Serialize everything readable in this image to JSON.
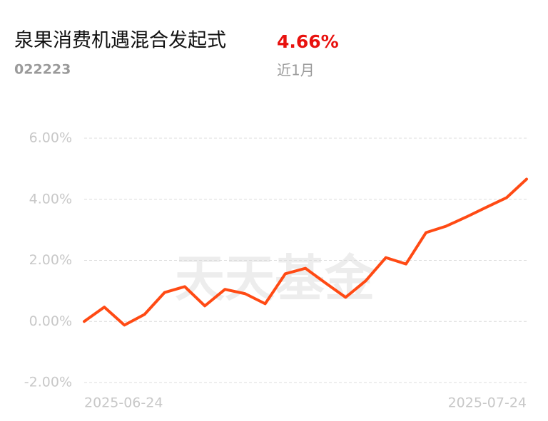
{
  "chart_data": {
    "type": "line",
    "title": "泉果消费机遇混合发起式",
    "return_value": "4.66%",
    "subtitle": "022223",
    "period": "近1月",
    "watermark": "天天基金",
    "categories": [
      "2025-06-24",
      null,
      null,
      null,
      null,
      null,
      null,
      null,
      null,
      null,
      null,
      null,
      null,
      null,
      null,
      null,
      null,
      null,
      null,
      null,
      null,
      null,
      "2025-07-24"
    ],
    "series": [
      {
        "name": "泉果消费机遇混合发起式",
        "color": "#ff4a14",
        "values": [
          0,
          0.47,
          -0.12,
          0.23,
          0.95,
          1.14,
          0.51,
          1.05,
          0.91,
          0.58,
          1.56,
          1.74,
          1.26,
          0.79,
          1.33,
          2.09,
          1.88,
          2.91,
          3.12,
          3.42,
          3.74,
          4.05,
          4.66
        ]
      }
    ],
    "ylim": [
      -2,
      6
    ],
    "yticks": [
      {
        "value": -2,
        "label": "-2.00%"
      },
      {
        "value": 0,
        "label": "0.00%"
      },
      {
        "value": 2,
        "label": "2.00%"
      },
      {
        "value": 4,
        "label": "4.00%"
      },
      {
        "value": 6,
        "label": "6.00%"
      }
    ],
    "grid": true
  }
}
